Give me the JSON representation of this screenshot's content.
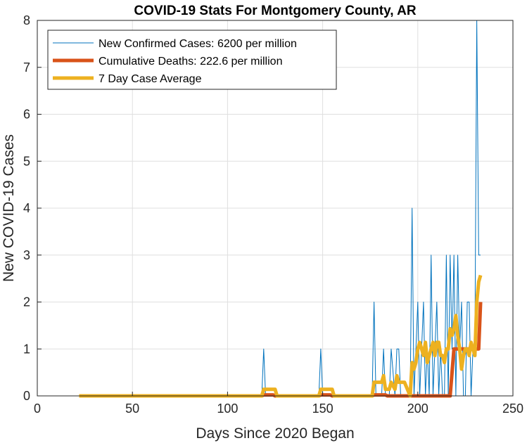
{
  "chart_data": {
    "type": "line",
    "title": "COVID-19 Stats For Montgomery County, AR",
    "xlabel": "Days Since 2020 Began",
    "ylabel": "New COVID-19 Cases",
    "xlim": [
      0,
      250
    ],
    "ylim": [
      0,
      8
    ],
    "xticks": [
      0,
      50,
      100,
      150,
      200,
      250
    ],
    "yticks": [
      0,
      1,
      2,
      3,
      4,
      5,
      6,
      7,
      8
    ],
    "grid": true,
    "legend_position": "top-left",
    "series": [
      {
        "name": "New Confirmed Cases: 6200 per million",
        "color": "#0072BD",
        "line_width": "thin",
        "x": [
          22,
          118,
          119,
          120,
          148,
          149,
          150,
          176,
          177,
          178,
          181,
          182,
          183,
          185,
          186,
          188,
          189,
          190,
          191,
          193,
          196,
          197,
          198,
          199,
          200,
          201,
          202,
          203,
          204,
          205,
          206,
          207,
          208,
          209,
          210,
          211,
          212,
          213,
          214,
          215,
          216,
          217,
          218,
          219,
          220,
          221,
          222,
          223,
          224,
          225,
          226,
          227,
          228,
          229,
          230,
          231,
          232,
          233
        ],
        "y": [
          0,
          0,
          1,
          0,
          0,
          1,
          0,
          0,
          2,
          0,
          0,
          1,
          0,
          0,
          1,
          0,
          1,
          1,
          0,
          0,
          0,
          4,
          0,
          1,
          2,
          0,
          1,
          2,
          0,
          1,
          0,
          3,
          0,
          1,
          2,
          0,
          1,
          0,
          0,
          3,
          0,
          3,
          1,
          3,
          0,
          3,
          1,
          2,
          0,
          0,
          2,
          2,
          0,
          1,
          1,
          8,
          3,
          3
        ]
      },
      {
        "name": "Cumulative Deaths: 222.6 per million",
        "color": "#D95319",
        "line_width": "thick",
        "x": [
          22,
          118,
          119,
          124,
          125,
          148,
          149,
          154,
          155,
          176,
          177,
          183,
          184,
          216,
          217,
          218,
          219,
          230,
          231,
          232,
          233
        ],
        "y": [
          0,
          0,
          0.02,
          0.02,
          0,
          0,
          0.02,
          0.02,
          0,
          0,
          0.02,
          0.02,
          0,
          0,
          0,
          0.5,
          1,
          1,
          1,
          1,
          2
        ]
      },
      {
        "name": "7 Day Case Average",
        "color": "#EDB120",
        "line_width": "thick",
        "x": [
          22,
          118,
          119,
          120,
          125,
          126,
          148,
          149,
          150,
          155,
          156,
          176,
          177,
          178,
          181,
          182,
          183,
          185,
          186,
          188,
          189,
          190,
          191,
          193,
          196,
          197,
          198,
          199,
          200,
          201,
          202,
          203,
          204,
          205,
          206,
          207,
          208,
          209,
          210,
          211,
          212,
          213,
          214,
          215,
          216,
          217,
          218,
          219,
          220,
          221,
          222,
          223,
          224,
          225,
          226,
          227,
          228,
          229,
          230,
          231,
          232,
          233
        ],
        "y": [
          0,
          0,
          0.14,
          0.14,
          0.14,
          0,
          0,
          0.14,
          0.14,
          0.14,
          0,
          0,
          0.29,
          0.29,
          0.29,
          0.43,
          0.14,
          0.14,
          0.29,
          0.14,
          0.43,
          0.29,
          0.29,
          0.29,
          0,
          0.71,
          0.57,
          0.71,
          1.0,
          1.14,
          1.0,
          0.86,
          1.14,
          0.71,
          0.86,
          1.0,
          1.14,
          0.86,
          1.14,
          1.14,
          0.86,
          0.86,
          0.71,
          1.0,
          1.0,
          1.43,
          1.29,
          1.43,
          1.71,
          1.29,
          1.0,
          0.57,
          0.86,
          1.0,
          1.0,
          0.86,
          1.14,
          1.0,
          0.86,
          2.0,
          2.43,
          2.57
        ]
      }
    ]
  }
}
